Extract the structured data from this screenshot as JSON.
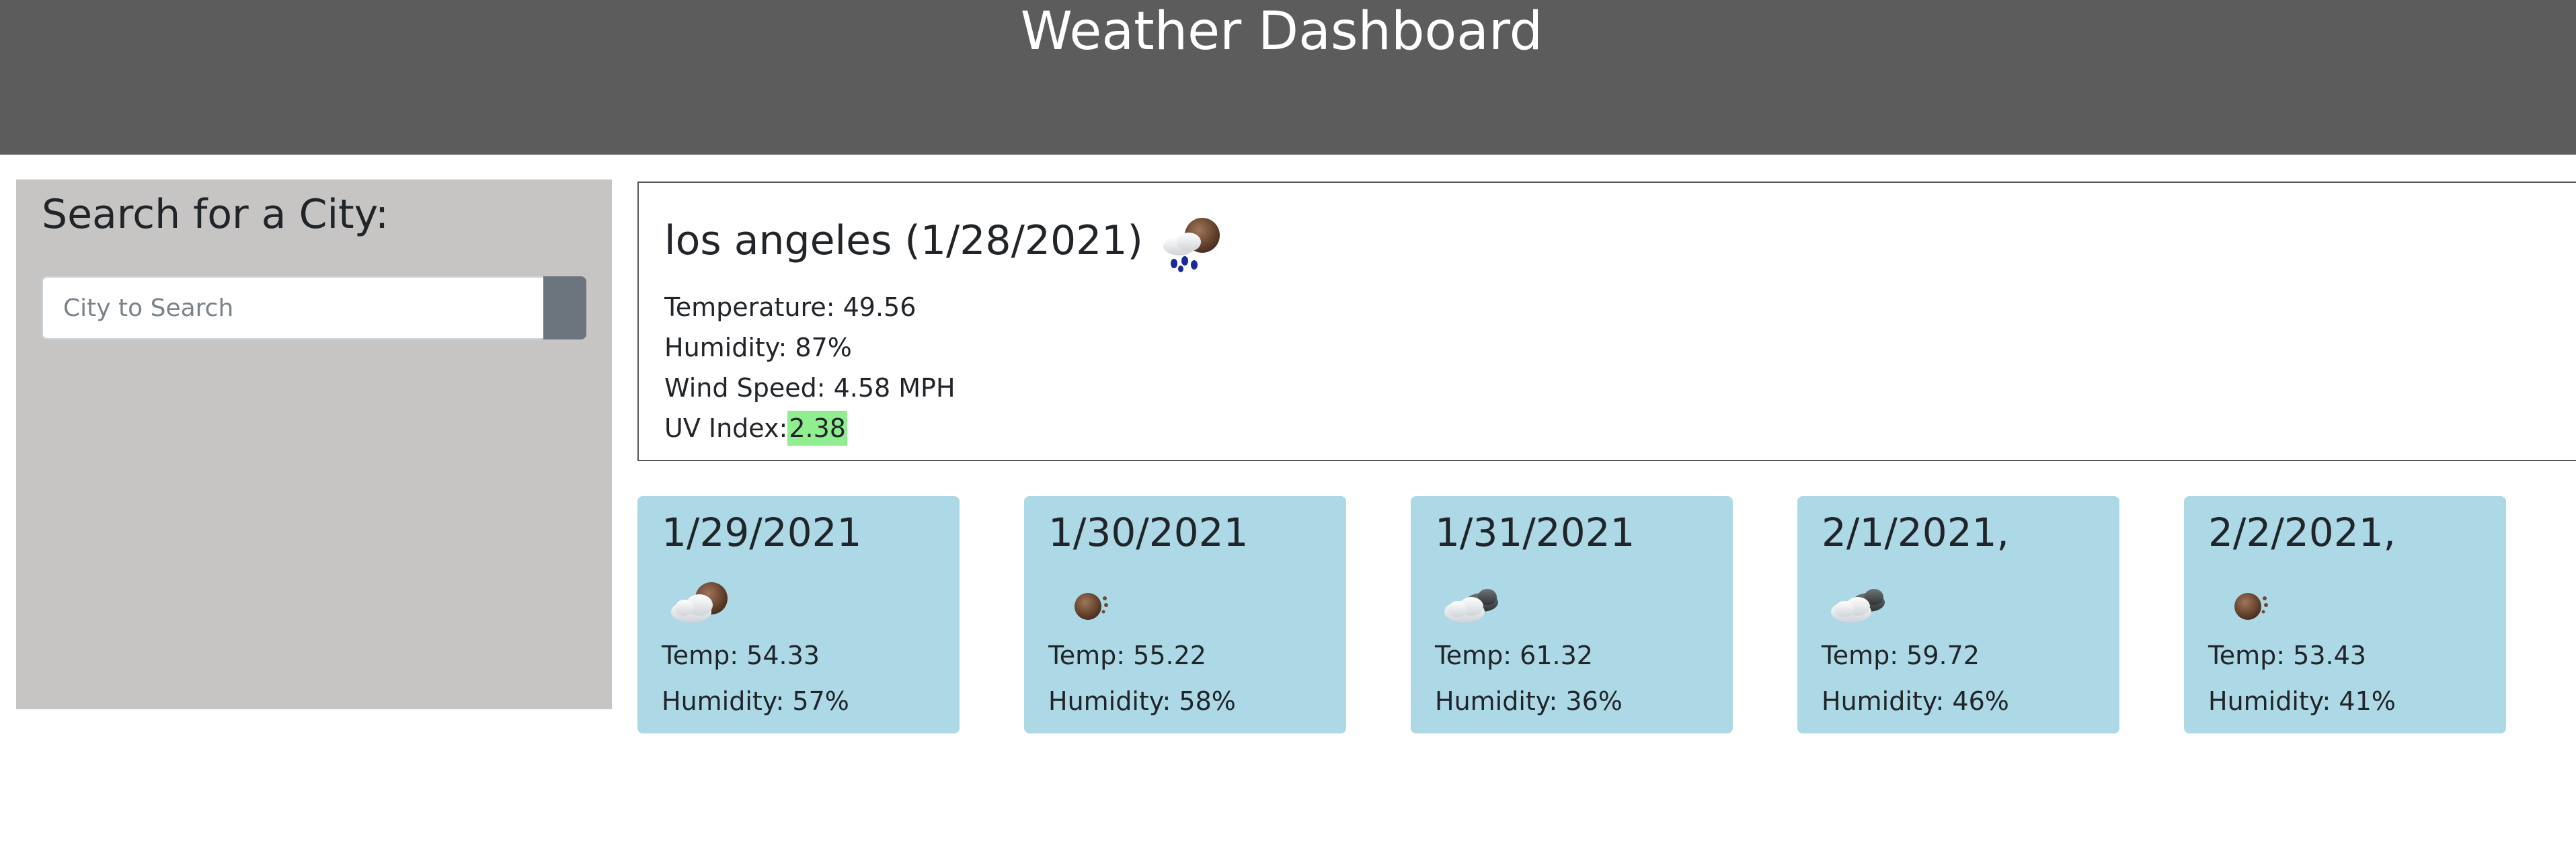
{
  "header": {
    "title": "Weather Dashboard"
  },
  "sidebar": {
    "title": "Search for a City:",
    "search": {
      "placeholder": "City to Search",
      "value": ""
    }
  },
  "current": {
    "heading": "los angeles (1/28/2021)",
    "icon": "rain-cloud-icon",
    "temperature": "Temperature: 49.56",
    "humidity": "Humidity: 87%",
    "wind": "Wind Speed: 4.58 MPH",
    "uv_label": "UV Index:",
    "uv_value": "2.38",
    "uv_color": "#90ee90"
  },
  "forecast": [
    {
      "date": "1/29/2021",
      "icon": "partly-cloudy-icon",
      "temp": "Temp: 54.33",
      "humidity": "Humidity: 57%"
    },
    {
      "date": "1/30/2021",
      "icon": "clear-sky-icon",
      "temp": "Temp: 55.22",
      "humidity": "Humidity: 58%"
    },
    {
      "date": "1/31/2021",
      "icon": "broken-clouds-icon",
      "temp": "Temp: 61.32",
      "humidity": "Humidity: 36%"
    },
    {
      "date": "2/1/2021,",
      "icon": "broken-clouds-icon",
      "temp": "Temp: 59.72",
      "humidity": "Humidity: 46%"
    },
    {
      "date": "2/2/2021,",
      "icon": "clear-sky-icon",
      "temp": "Temp: 53.43",
      "humidity": "Humidity: 41%"
    }
  ],
  "colors": {
    "header_bg": "#5c5c5c",
    "sidebar_bg": "#c6c5c4",
    "card_bg": "#add8e6",
    "button_bg": "#6c757d"
  }
}
